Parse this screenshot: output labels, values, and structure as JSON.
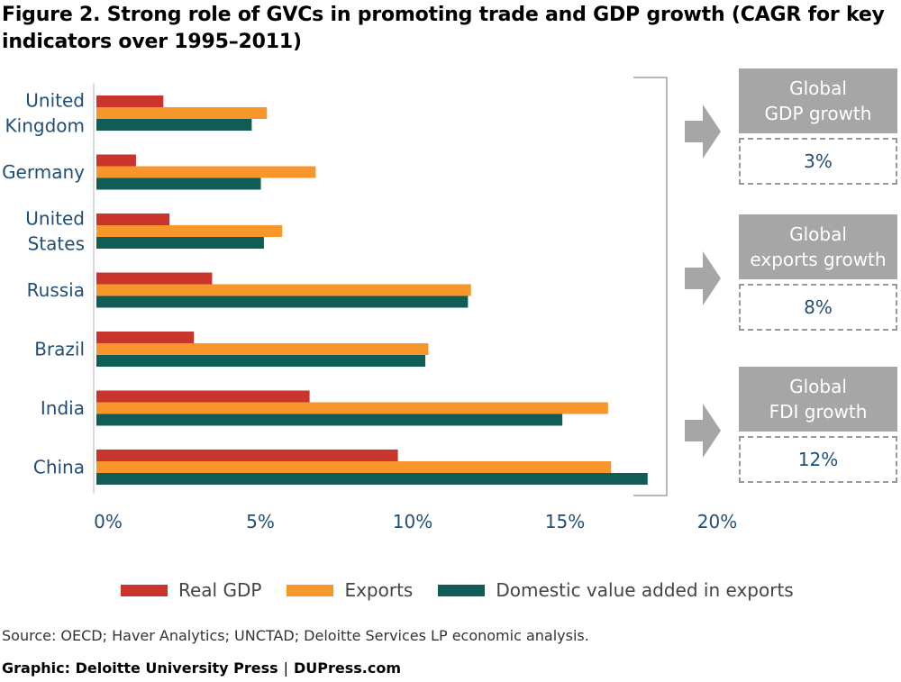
{
  "title": "Figure 2. Strong role of GVCs in promoting trade and GDP growth (CAGR for key indicators over 1995–2011)",
  "source": "Source: OECD; Haver Analytics; UNCTAD; Deloitte Services LP economic analysis.",
  "credit": {
    "left": "Graphic: Deloitte University Press",
    "separator": "|",
    "right": "DUPress.com"
  },
  "callouts": [
    {
      "line1": "Global",
      "line2": "GDP growth",
      "value": "3%"
    },
    {
      "line1": "Global",
      "line2": "exports growth",
      "value": "8%"
    },
    {
      "line1": "Global",
      "line2": "FDI growth",
      "value": "12%"
    }
  ],
  "colors": {
    "real_gdp": "#c9352c",
    "exports": "#f7962b",
    "domestic": "#0f5d54",
    "label": "#1f4e79",
    "callout_gray": "#a6a6a6",
    "arrow_gray": "#a6a6a6"
  },
  "chart_data": {
    "type": "bar",
    "orientation": "horizontal",
    "categories": [
      [
        "United",
        "Kingdom"
      ],
      [
        "Germany"
      ],
      [
        "United",
        "States"
      ],
      [
        "Russia"
      ],
      [
        "Brazil"
      ],
      [
        "India"
      ],
      [
        "China"
      ]
    ],
    "series": [
      {
        "name": "Real GDP",
        "values": [
          2.2,
          1.3,
          2.4,
          3.8,
          3.2,
          7.0,
          9.9
        ]
      },
      {
        "name": "Exports",
        "values": [
          5.6,
          7.2,
          6.1,
          12.3,
          10.9,
          16.8,
          16.9
        ]
      },
      {
        "name": "Domestic value added in exports",
        "values": [
          5.1,
          5.4,
          5.5,
          12.2,
          10.8,
          15.3,
          18.1
        ]
      }
    ],
    "xlim": [
      0,
      20
    ],
    "xticks": [
      "0%",
      "5%",
      "10%",
      "15%",
      "20%"
    ],
    "xtick_values": [
      0,
      5,
      10,
      15,
      20
    ],
    "legend_position": "bottom",
    "grid": false,
    "xlabel": "",
    "ylabel": ""
  }
}
